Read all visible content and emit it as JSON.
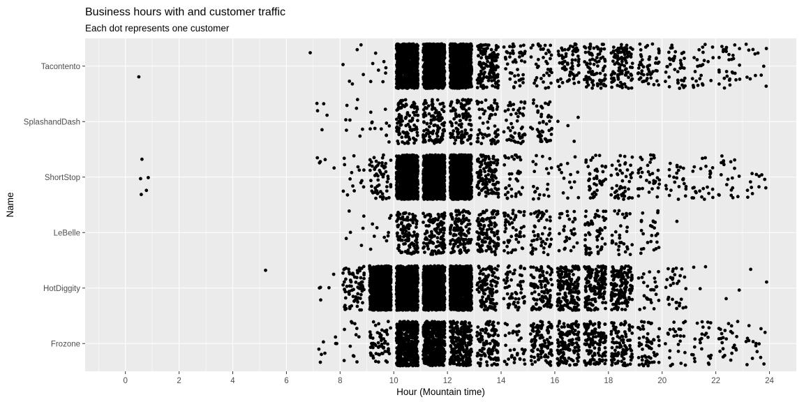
{
  "chart_data": {
    "type": "scatter",
    "jitter": true,
    "title": "Business hours with and customer traffic",
    "subtitle": "Each dot represents one customer",
    "xlabel": "Hour (Mountain time)",
    "ylabel": "Name",
    "xlim": [
      -1.5,
      25
    ],
    "x_ticks": [
      0,
      2,
      4,
      6,
      8,
      10,
      12,
      14,
      16,
      18,
      20,
      22,
      24
    ],
    "categories": [
      "Tacontento",
      "SplashandDash",
      "ShortStop",
      "LeBelle",
      "HotDiggity",
      "Frozone"
    ],
    "grid": true,
    "legend": "none",
    "colors": {
      "panel": "#ebebeb",
      "grid": "#ffffff",
      "point": "#000000"
    },
    "series": [
      {
        "category": "Tacontento",
        "hourly_counts": [
          {
            "hour": 0,
            "count": 1
          },
          {
            "hour": 6,
            "count": 1
          },
          {
            "hour": 8,
            "count": 6
          },
          {
            "hour": 9,
            "count": 8
          },
          {
            "hour": 10,
            "count": 900
          },
          {
            "hour": 11,
            "count": 900
          },
          {
            "hour": 12,
            "count": 900
          },
          {
            "hour": 13,
            "count": 160
          },
          {
            "hour": 14,
            "count": 50
          },
          {
            "hour": 15,
            "count": 40
          },
          {
            "hour": 16,
            "count": 70
          },
          {
            "hour": 17,
            "count": 90
          },
          {
            "hour": 18,
            "count": 110
          },
          {
            "hour": 19,
            "count": 55
          },
          {
            "hour": 20,
            "count": 40
          },
          {
            "hour": 21,
            "count": 25
          },
          {
            "hour": 22,
            "count": 30
          },
          {
            "hour": 23,
            "count": 12
          }
        ]
      },
      {
        "category": "SplashandDash",
        "hourly_counts": [
          {
            "hour": 7,
            "count": 5
          },
          {
            "hour": 8,
            "count": 8
          },
          {
            "hour": 9,
            "count": 12
          },
          {
            "hour": 10,
            "count": 110
          },
          {
            "hour": 11,
            "count": 110
          },
          {
            "hour": 12,
            "count": 110
          },
          {
            "hour": 13,
            "count": 60
          },
          {
            "hour": 14,
            "count": 50
          },
          {
            "hour": 15,
            "count": 45
          },
          {
            "hour": 16,
            "count": 4
          }
        ]
      },
      {
        "category": "ShortStop",
        "hourly_counts": [
          {
            "hour": 0,
            "count": 5
          },
          {
            "hour": 7,
            "count": 5
          },
          {
            "hour": 8,
            "count": 15
          },
          {
            "hour": 9,
            "count": 60
          },
          {
            "hour": 10,
            "count": 900
          },
          {
            "hour": 11,
            "count": 900
          },
          {
            "hour": 12,
            "count": 900
          },
          {
            "hour": 13,
            "count": 120
          },
          {
            "hour": 14,
            "count": 35
          },
          {
            "hour": 15,
            "count": 20
          },
          {
            "hour": 16,
            "count": 15
          },
          {
            "hour": 17,
            "count": 40
          },
          {
            "hour": 18,
            "count": 45
          },
          {
            "hour": 19,
            "count": 35
          },
          {
            "hour": 20,
            "count": 25
          },
          {
            "hour": 21,
            "count": 25
          },
          {
            "hour": 22,
            "count": 20
          },
          {
            "hour": 23,
            "count": 12
          }
        ]
      },
      {
        "category": "LeBelle",
        "hourly_counts": [
          {
            "hour": 8,
            "count": 6
          },
          {
            "hour": 9,
            "count": 10
          },
          {
            "hour": 10,
            "count": 120
          },
          {
            "hour": 11,
            "count": 120
          },
          {
            "hour": 12,
            "count": 120
          },
          {
            "hour": 13,
            "count": 110
          },
          {
            "hour": 14,
            "count": 50
          },
          {
            "hour": 15,
            "count": 50
          },
          {
            "hour": 16,
            "count": 30
          },
          {
            "hour": 17,
            "count": 55
          },
          {
            "hour": 18,
            "count": 30
          },
          {
            "hour": 19,
            "count": 25
          },
          {
            "hour": 20,
            "count": 1
          }
        ]
      },
      {
        "category": "HotDiggity",
        "hourly_counts": [
          {
            "hour": 5,
            "count": 1
          },
          {
            "hour": 7,
            "count": 5
          },
          {
            "hour": 8,
            "count": 80
          },
          {
            "hour": 9,
            "count": 900
          },
          {
            "hour": 10,
            "count": 900
          },
          {
            "hour": 11,
            "count": 900
          },
          {
            "hour": 12,
            "count": 900
          },
          {
            "hour": 13,
            "count": 110
          },
          {
            "hour": 14,
            "count": 60
          },
          {
            "hour": 15,
            "count": 110
          },
          {
            "hour": 16,
            "count": 170
          },
          {
            "hour": 17,
            "count": 160
          },
          {
            "hour": 18,
            "count": 150
          },
          {
            "hour": 19,
            "count": 25
          },
          {
            "hour": 20,
            "count": 30
          },
          {
            "hour": 21,
            "count": 3
          },
          {
            "hour": 22,
            "count": 2
          },
          {
            "hour": 23,
            "count": 2
          }
        ]
      },
      {
        "category": "Frozone",
        "hourly_counts": [
          {
            "hour": 7,
            "count": 8
          },
          {
            "hour": 8,
            "count": 12
          },
          {
            "hour": 9,
            "count": 60
          },
          {
            "hour": 10,
            "count": 500
          },
          {
            "hour": 11,
            "count": 500
          },
          {
            "hour": 12,
            "count": 250
          },
          {
            "hour": 13,
            "count": 110
          },
          {
            "hour": 14,
            "count": 35
          },
          {
            "hour": 15,
            "count": 100
          },
          {
            "hour": 16,
            "count": 130
          },
          {
            "hour": 17,
            "count": 140
          },
          {
            "hour": 18,
            "count": 100
          },
          {
            "hour": 19,
            "count": 60
          },
          {
            "hour": 20,
            "count": 25
          },
          {
            "hour": 21,
            "count": 25
          },
          {
            "hour": 22,
            "count": 25
          },
          {
            "hour": 23,
            "count": 15
          }
        ]
      }
    ]
  }
}
